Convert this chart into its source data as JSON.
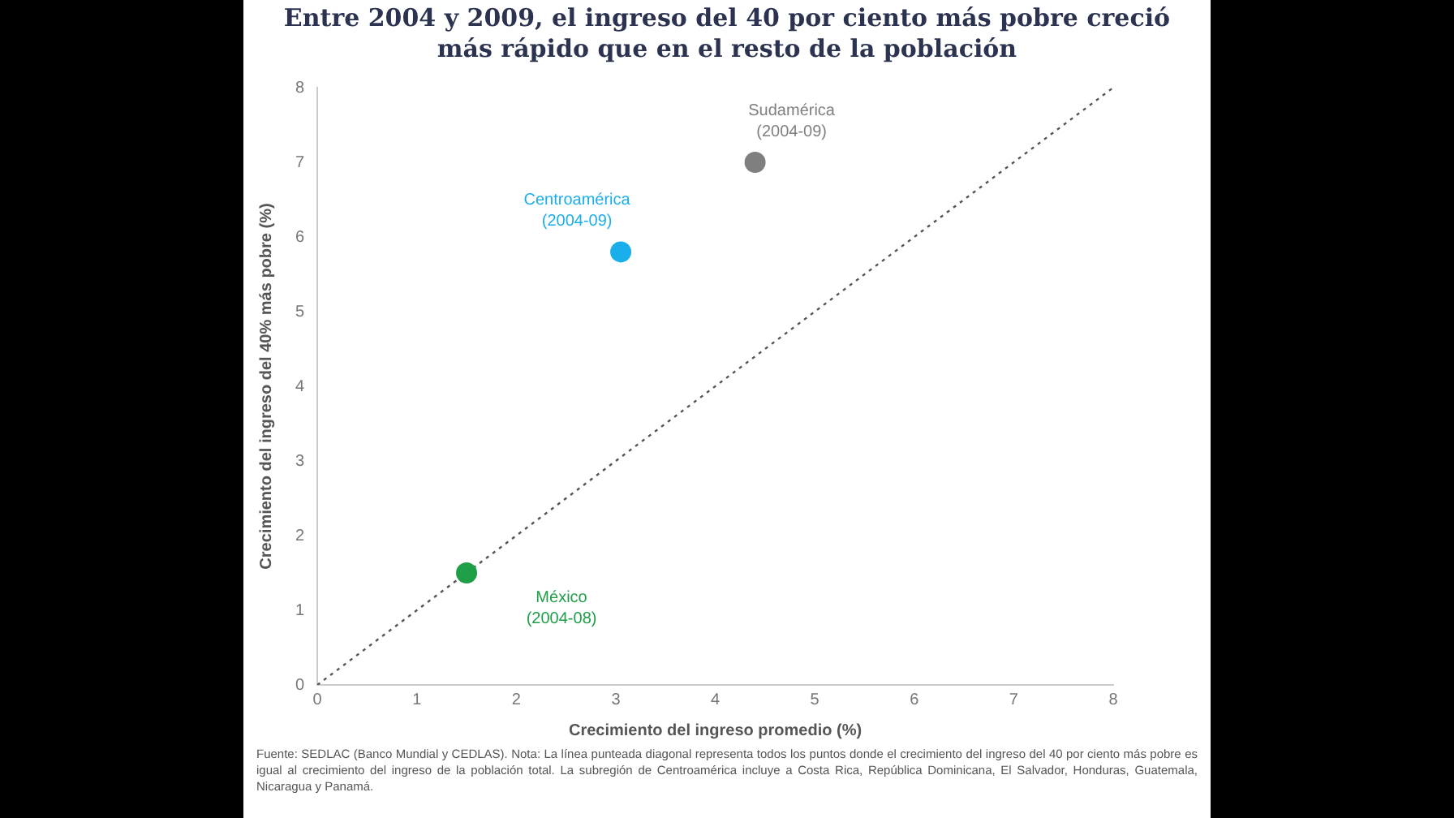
{
  "chart_data": {
    "type": "scatter",
    "title": "Entre 2004 y 2009, el ingreso del 40 por ciento más pobre creció más rápido que en el resto de la población",
    "xlabel": "Crecimiento del ingreso promedio (%)",
    "ylabel": "Crecimiento del ingreso del 40% más pobre (%)",
    "xlim": [
      0,
      8
    ],
    "ylim": [
      0,
      8
    ],
    "xticks": [
      0,
      1,
      2,
      3,
      4,
      5,
      6,
      7,
      8
    ],
    "yticks": [
      0,
      1,
      2,
      3,
      4,
      5,
      6,
      7,
      8
    ],
    "grid": false,
    "marker": "circle",
    "series": [
      {
        "name": "Sudamérica (2004-09)",
        "color": "#7f7f7f",
        "x": [
          4.4
        ],
        "values": [
          7.0
        ]
      },
      {
        "name": "Centroamérica (2004-09)",
        "color": "#1aaeea",
        "x": [
          3.05
        ],
        "values": [
          5.8
        ]
      },
      {
        "name": "México (2004-08)",
        "color": "#1f9e48",
        "x": [
          1.5
        ],
        "values": [
          1.5
        ]
      },
      {
        "type": "line",
        "color": "#555555",
        "line_style": "dotted",
        "marker": "none",
        "x": [
          0,
          8
        ],
        "values": [
          0,
          8
        ]
      }
    ],
    "annotations": [
      "Fuente: SEDLAC (Banco Mundial y CEDLAS). Nota: La línea punteada diagonal representa todos los puntos donde el crecimiento del ingreso del 40 por ciento más pobre es igual al crecimiento del ingreso de la población total. La subregión de Centroamérica incluye a Costa Rica, República Dominicana, El Salvador, Honduras, Guatemala, Nicaragua y Panamá."
    ]
  }
}
